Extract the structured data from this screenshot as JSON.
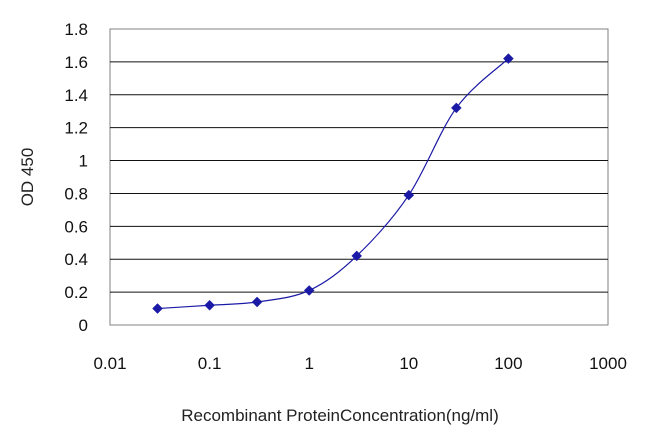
{
  "chart_data": {
    "type": "scatter",
    "title": "",
    "xlabel": "Recombinant ProteinConcentration(ng/ml)",
    "ylabel": "OD 450",
    "x_scale": "log",
    "xlim": [
      0.01,
      1000
    ],
    "ylim": [
      0,
      1.8
    ],
    "x_ticks": [
      "0.01",
      "0.1",
      "1",
      "10",
      "100",
      "1000"
    ],
    "y_ticks": [
      "0",
      "0.2",
      "0.4",
      "0.6",
      "0.8",
      "1",
      "1.2",
      "1.4",
      "1.6",
      "1.8"
    ],
    "grid": "horizontal",
    "legend": "none",
    "series": [
      {
        "color": "#1a1aa6",
        "marker": "diamond",
        "line": "smooth",
        "points": [
          {
            "x": 0.03,
            "y": 0.1
          },
          {
            "x": 0.1,
            "y": 0.12
          },
          {
            "x": 0.3,
            "y": 0.14
          },
          {
            "x": 1,
            "y": 0.21
          },
          {
            "x": 3,
            "y": 0.42
          },
          {
            "x": 10,
            "y": 0.79
          },
          {
            "x": 30,
            "y": 1.32
          },
          {
            "x": 100,
            "y": 1.62
          }
        ]
      }
    ]
  }
}
